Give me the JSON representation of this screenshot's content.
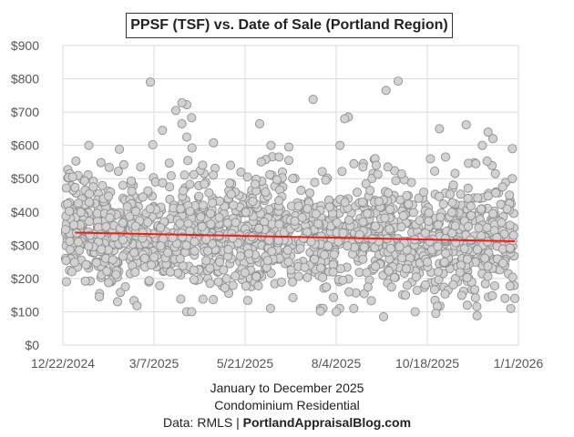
{
  "chart_data": {
    "type": "scatter",
    "title": "PPSF (TSF) vs. Date of Sale (Portland Region)",
    "ylim": [
      0,
      900
    ],
    "y_ticks": [
      0,
      100,
      200,
      300,
      400,
      500,
      600,
      700,
      800,
      900
    ],
    "y_tick_labels": [
      "$0",
      "$100",
      "$200",
      "$300",
      "$400",
      "$500",
      "$600",
      "$700",
      "$800",
      "$900"
    ],
    "x_ticks": [
      "12/22/2024",
      "3/7/2025",
      "5/21/2025",
      "8/4/2025",
      "10/18/2025",
      "1/1/2026"
    ],
    "x_tick_days": [
      0,
      75,
      150,
      225,
      300,
      375
    ],
    "xlim_days": [
      0,
      375
    ],
    "grid": true,
    "trendline": {
      "color": "#e8201c",
      "start": {
        "day": 10,
        "value": 338
      },
      "end": {
        "day": 372,
        "value": 312
      }
    },
    "point_color": "#d2d2d2",
    "point_stroke": "#8f8f8f",
    "notable_points": [
      {
        "day": 72,
        "value": 790
      },
      {
        "day": 206,
        "value": 738
      },
      {
        "day": 276,
        "value": 793
      },
      {
        "day": 266,
        "value": 765
      },
      {
        "day": 102,
        "value": 722
      },
      {
        "day": 98,
        "value": 728
      },
      {
        "day": 93,
        "value": 705
      },
      {
        "day": 162,
        "value": 665
      },
      {
        "day": 310,
        "value": 650
      },
      {
        "day": 332,
        "value": 662
      },
      {
        "day": 354,
        "value": 620
      },
      {
        "day": 350,
        "value": 640
      },
      {
        "day": 82,
        "value": 645
      },
      {
        "day": 235,
        "value": 685
      },
      {
        "day": 232,
        "value": 680
      },
      {
        "day": 124,
        "value": 608
      },
      {
        "day": 74,
        "value": 602
      },
      {
        "day": 106,
        "value": 683
      },
      {
        "day": 98,
        "value": 665
      },
      {
        "day": 102,
        "value": 625
      },
      {
        "day": 178,
        "value": 565
      },
      {
        "day": 257,
        "value": 560
      },
      {
        "day": 282,
        "value": 150
      },
      {
        "day": 290,
        "value": 100
      },
      {
        "day": 264,
        "value": 85
      },
      {
        "day": 307,
        "value": 95
      },
      {
        "day": 341,
        "value": 88
      },
      {
        "day": 212,
        "value": 102
      },
      {
        "day": 225,
        "value": 100
      },
      {
        "day": 102,
        "value": 100
      },
      {
        "day": 106,
        "value": 100
      },
      {
        "day": 30,
        "value": 145
      },
      {
        "day": 372,
        "value": 140
      },
      {
        "day": 61,
        "value": 118
      },
      {
        "day": 45,
        "value": 130
      },
      {
        "day": 128,
        "value": 190
      },
      {
        "day": 8,
        "value": 505
      },
      {
        "day": 25,
        "value": 475
      },
      {
        "day": 370,
        "value": 590
      },
      {
        "day": 370,
        "value": 500
      },
      {
        "day": 362,
        "value": 475
      },
      {
        "day": 356,
        "value": 515
      },
      {
        "day": 340,
        "value": 545
      },
      {
        "day": 315,
        "value": 565
      },
      {
        "day": 247,
        "value": 535
      },
      {
        "day": 258,
        "value": 540
      },
      {
        "day": 186,
        "value": 595
      },
      {
        "day": 186,
        "value": 555
      },
      {
        "day": 138,
        "value": 540
      },
      {
        "day": 152,
        "value": 505
      }
    ]
  },
  "footer": {
    "line1": "January to December 2025",
    "line2": "Condominium Residential",
    "line3_prefix": "Data: RMLS | ",
    "line3_brand": "PortlandAppraisalBlog.com"
  }
}
